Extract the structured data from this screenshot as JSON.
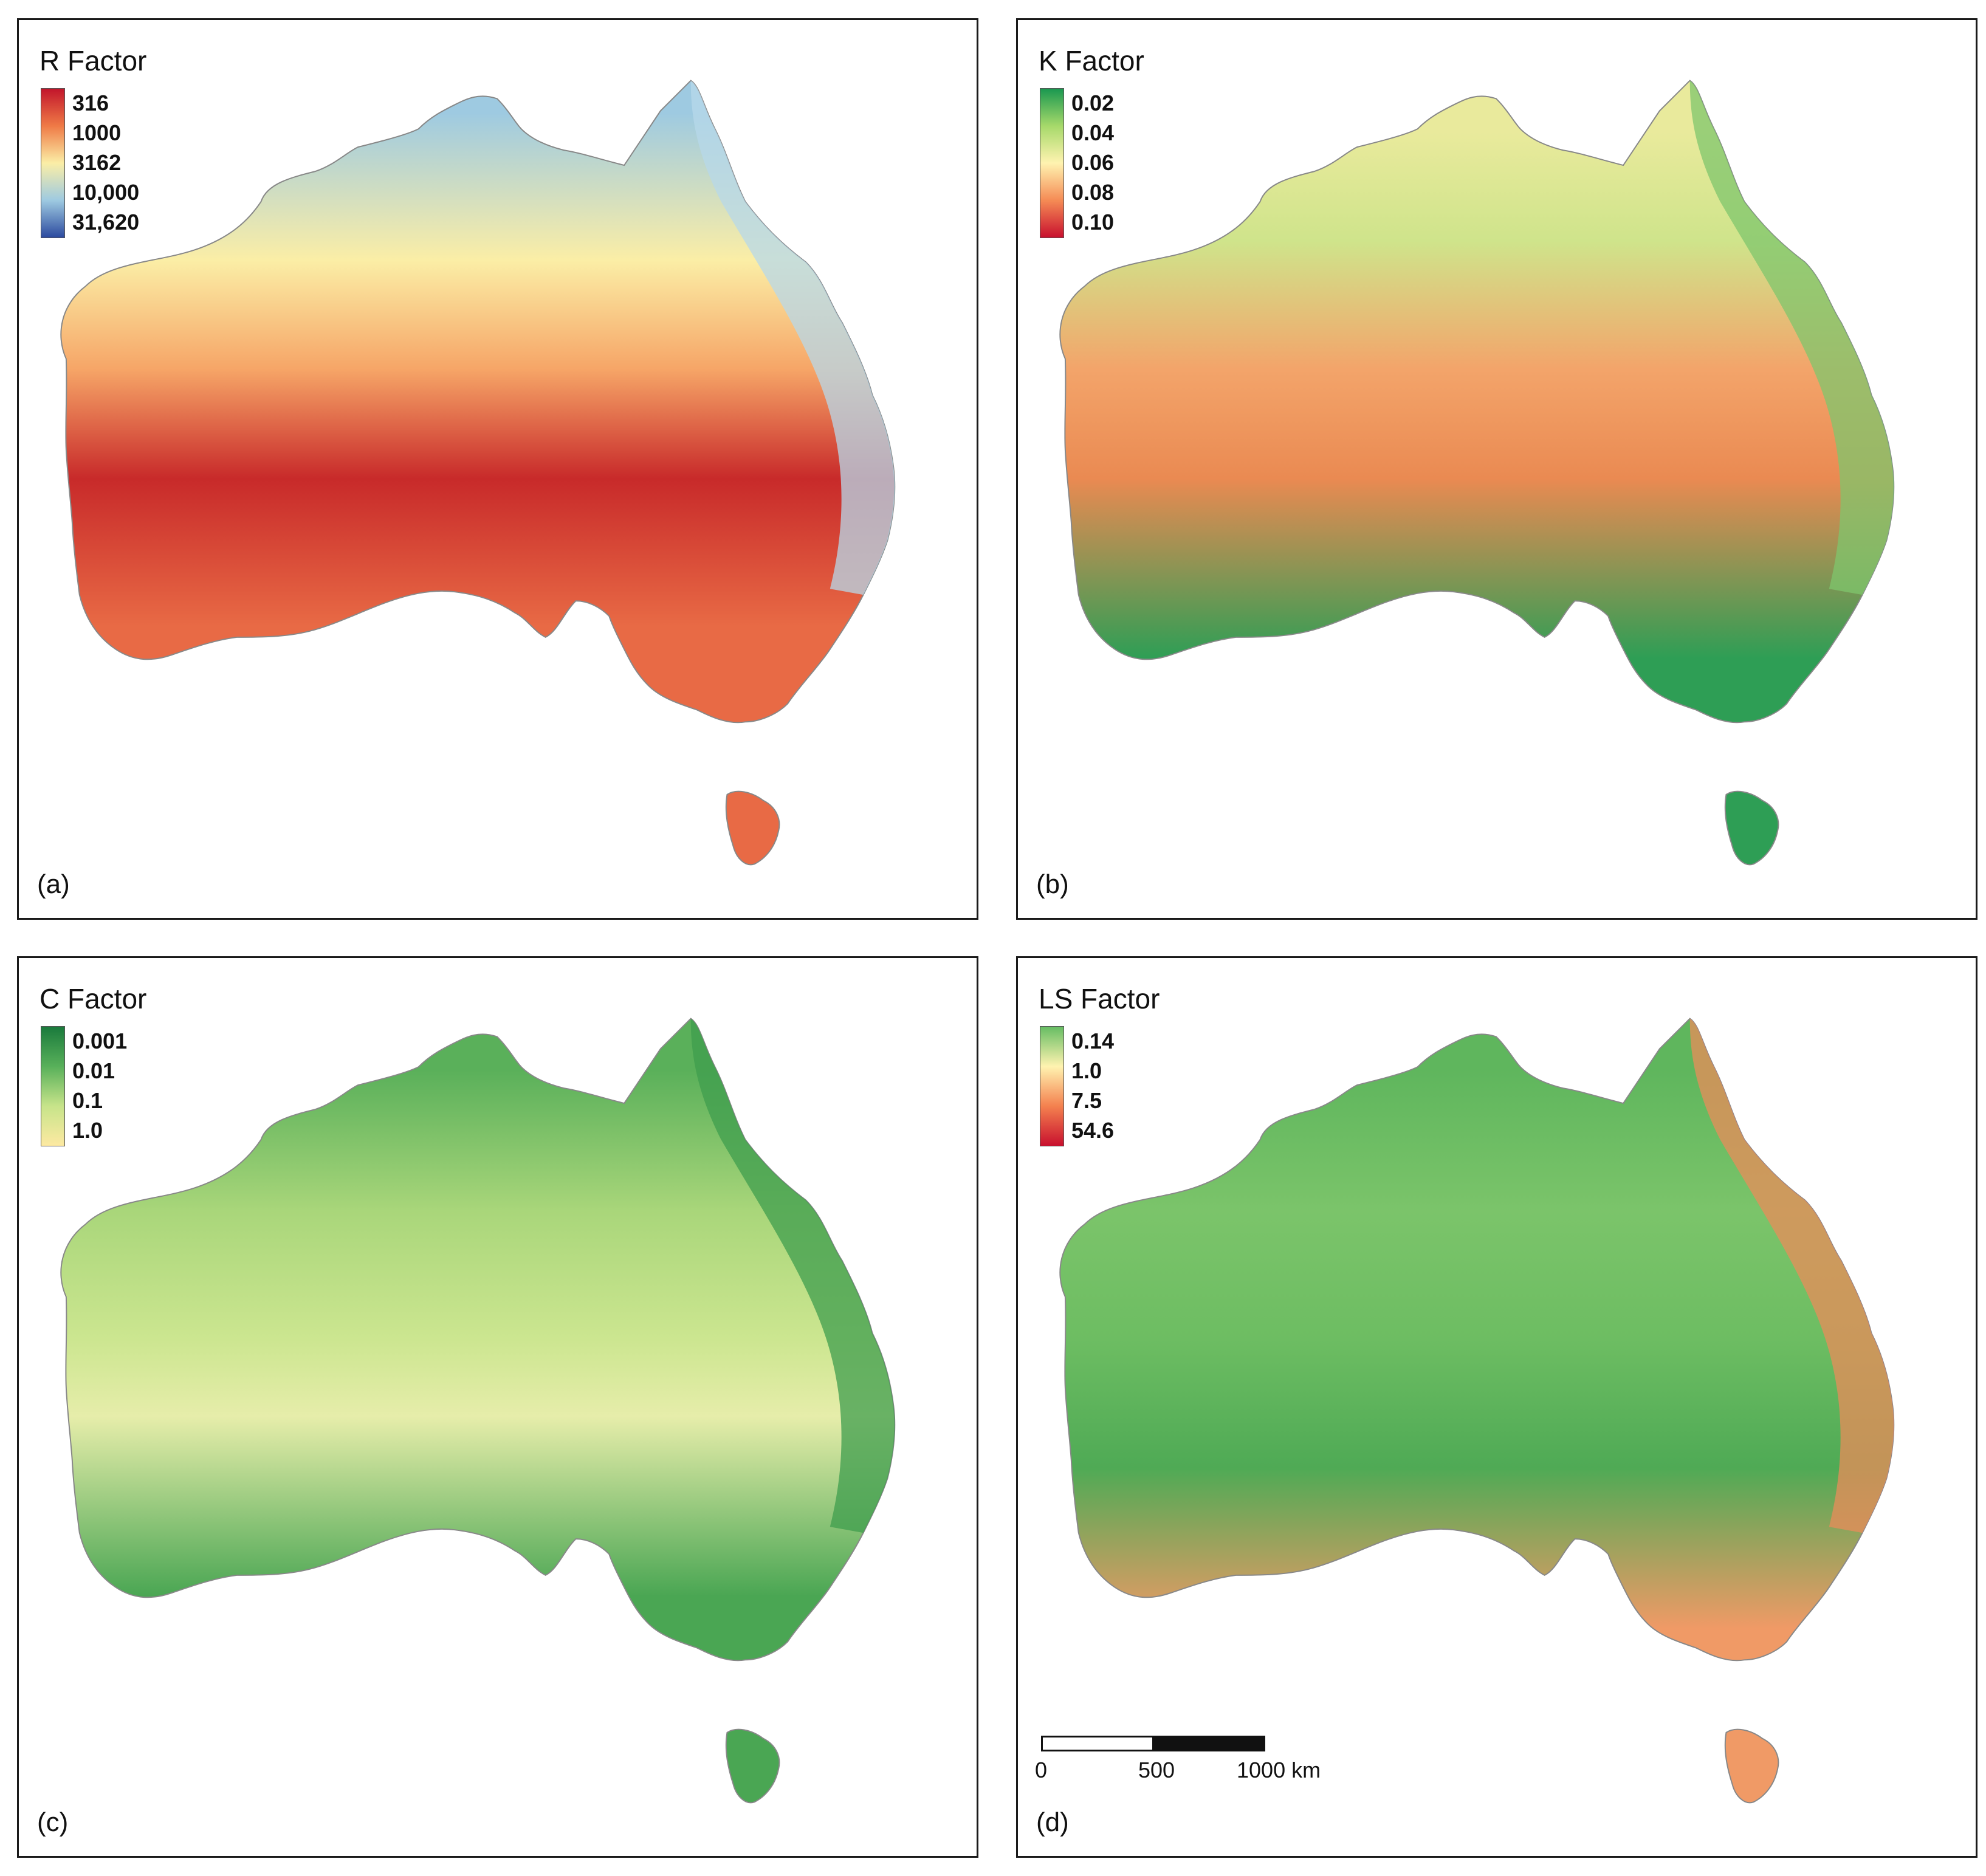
{
  "panels": {
    "a": {
      "title": "R Factor",
      "letter": "(a)",
      "legend": [
        "316",
        "1000",
        "3162",
        "10,000",
        "31,620"
      ],
      "legend_colors": [
        "#c2152b",
        "#ef7a46",
        "#fbeea6",
        "#9ecae1",
        "#2c4a9f"
      ],
      "map_colors": {
        "north": "#9ecae1",
        "band": "#fbeea6",
        "mid": "#f6a567",
        "core": "#c82a2a",
        "east": "#b7d8ea",
        "south": "#e86a45"
      }
    },
    "b": {
      "title": "K Factor",
      "letter": "(b)",
      "legend": [
        "0.02",
        "0.04",
        "0.06",
        "0.08",
        "0.10"
      ],
      "legend_colors": [
        "#1a9850",
        "#a6d96a",
        "#fff3b0",
        "#f58b55",
        "#c8102e"
      ],
      "map_colors": {
        "north": "#e9ea9c",
        "band": "#cfe48b",
        "mid": "#f3a46a",
        "core": "#ea8a52",
        "east": "#7fc66c",
        "south": "#2e9e55"
      }
    },
    "c": {
      "title": "C Factor",
      "letter": "(c)",
      "legend": [
        "0.001",
        "0.01",
        "0.1",
        "1.0"
      ],
      "legend_colors": [
        "#1a7a3c",
        "#58b05a",
        "#c7e48a",
        "#fde9a2"
      ],
      "map_colors": {
        "north": "#5ab05a",
        "band": "#a9d67a",
        "mid": "#cce690",
        "core": "#e6edaa",
        "east": "#3f9e4d",
        "south": "#4aa653"
      }
    },
    "d": {
      "title": "LS Factor",
      "letter": "(d)",
      "legend": [
        "0.14",
        "1.0",
        "7.5",
        "54.6"
      ],
      "legend_colors": [
        "#66bd63",
        "#fff3b0",
        "#f4814f",
        "#c8102e"
      ],
      "map_colors": {
        "north": "#5fb65d",
        "band": "#7bc46a",
        "mid": "#6dbd62",
        "core": "#4faa55",
        "east": "#e98c5a",
        "south": "#f09a66"
      },
      "scale_bar": {
        "ticks": [
          "0",
          "500",
          "1000 km"
        ]
      }
    }
  }
}
